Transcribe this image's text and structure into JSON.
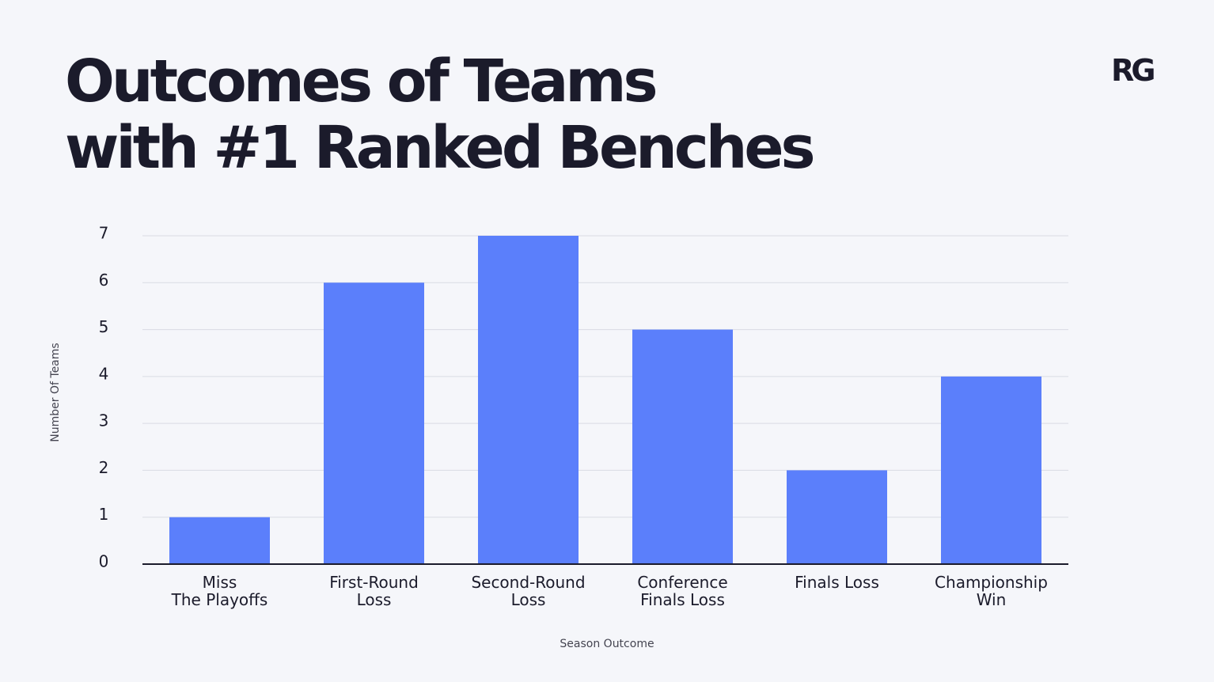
{
  "header": {
    "title_line1": "Outcomes of Teams",
    "title_line2": "with #1 Ranked Benches",
    "logo_text": "RG"
  },
  "chart_data": {
    "type": "bar",
    "categories": [
      [
        "Miss",
        "The Playoffs"
      ],
      [
        "First-Round",
        "Loss"
      ],
      [
        "Second-Round",
        "Loss"
      ],
      [
        "Conference",
        "Finals Loss"
      ],
      [
        "Finals Loss"
      ],
      [
        "Championship",
        "Win"
      ]
    ],
    "values": [
      1,
      6,
      7,
      5,
      2,
      4
    ],
    "xlabel": "Season Outcome",
    "ylabel": "Number Of Teams",
    "ylim": [
      0,
      7
    ],
    "yticks": [
      0,
      1,
      2,
      3,
      4,
      5,
      6,
      7
    ],
    "grid": true,
    "legend": "none",
    "bar_color": "#5b7ffb",
    "grid_color": "#d9dbe3",
    "axis_color": "#1b1b2b",
    "text_color": "#1b1b2b"
  }
}
